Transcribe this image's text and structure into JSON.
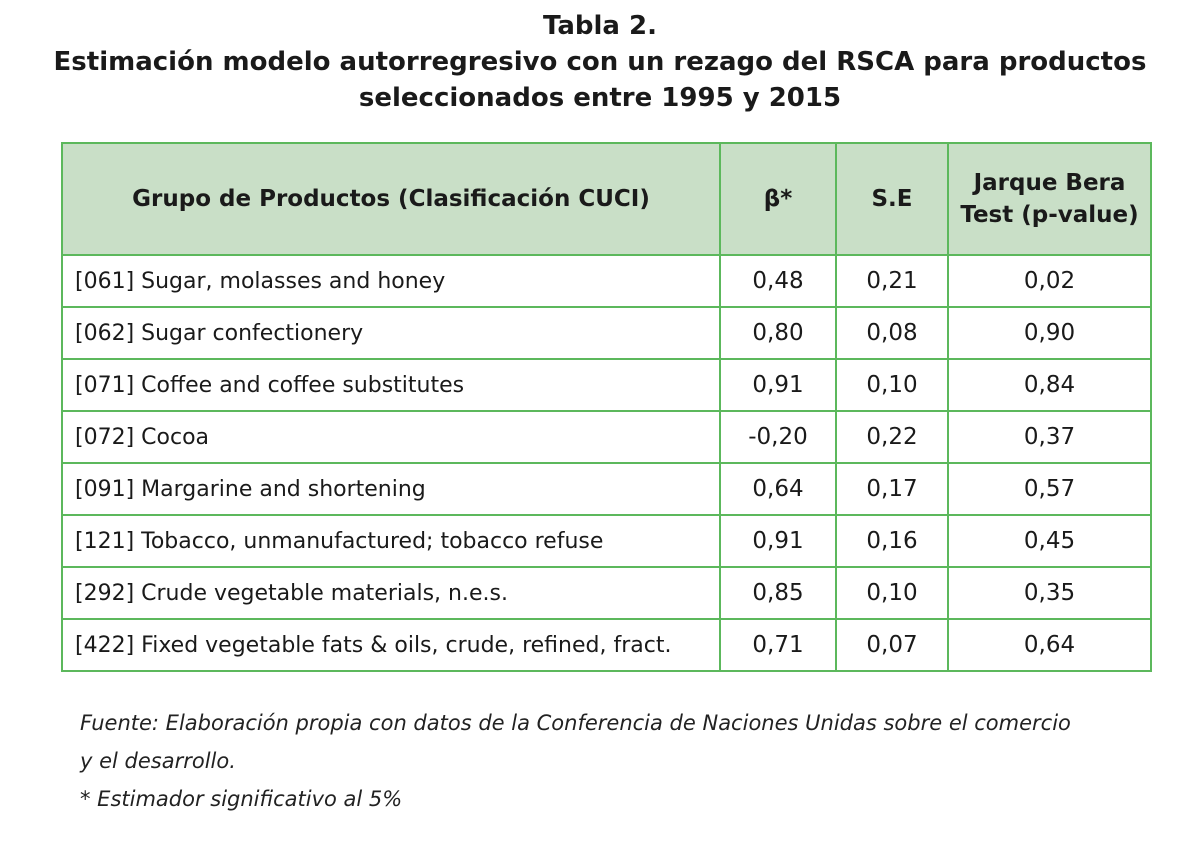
{
  "title": {
    "line1": "Tabla 2.",
    "line2": "Estimación modelo autorregresivo con un rezago del RSCA para productos",
    "line3": "seleccionados entre 1995 y 2015"
  },
  "table": {
    "headers": [
      "Grupo de Productos (Clasificación CUCI)",
      "β*",
      "S.E",
      "Jarque Bera Test (p-value)"
    ],
    "rows": [
      [
        "[061] Sugar, molasses and honey",
        "0,48",
        "0,21",
        "0,02"
      ],
      [
        "[062] Sugar confectionery",
        "0,80",
        "0,08",
        "0,90"
      ],
      [
        "[071] Coffee and coffee substitutes",
        "0,91",
        "0,10",
        "0,84"
      ],
      [
        "[072] Cocoa",
        "-0,20",
        "0,22",
        "0,37"
      ],
      [
        "[091] Margarine and shortening",
        "0,64",
        "0,17",
        "0,57"
      ],
      [
        "[121] Tobacco, unmanufactured; tobacco refuse",
        "0,91",
        "0,16",
        "0,45"
      ],
      [
        "[292] Crude vegetable materials, n.e.s.",
        "0,85",
        "0,10",
        "0,35"
      ],
      [
        "[422] Fixed vegetable fats & oils, crude, refined, fract.",
        "0,71",
        "0,07",
        "0,64"
      ]
    ]
  },
  "footnotes": {
    "source_line1": "Fuente: Elaboración propia con datos de la Conferencia de Naciones Unidas sobre el comercio",
    "source_line2": "y el desarrollo.",
    "significance": "* Estimador significativo al 5%"
  },
  "colors": {
    "border": "#5cb85c",
    "header_bg": "#c9dfc7"
  }
}
